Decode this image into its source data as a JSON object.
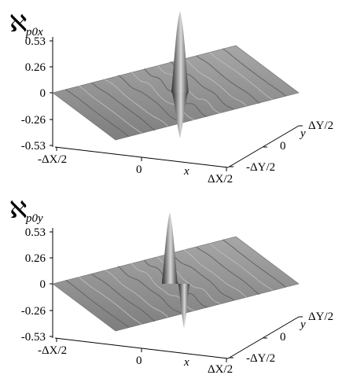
{
  "figure": {
    "panels": [
      {
        "id": "top",
        "symbol": "ℵ",
        "subscript": "p0x",
        "z_ticks": [
          "0.53",
          "0.26",
          "0",
          "-0.26",
          "-0.53"
        ],
        "x_ticks": [
          "-ΔX/2",
          "0",
          "ΔX/2"
        ],
        "x_label": "x",
        "y_ticks": [
          "ΔY/2",
          "0",
          "-ΔY/2"
        ],
        "y_label": "y",
        "colors": {
          "surface": "#8a8a8a",
          "dark": "#3a3a3a",
          "light": "#cfcfcf"
        }
      },
      {
        "id": "bottom",
        "symbol": "ℵ",
        "subscript": "p0y",
        "z_ticks": [
          "0.53",
          "0.26",
          "0",
          "-0.26",
          "-0.53"
        ],
        "x_ticks": [
          "-ΔX/2",
          "0",
          "ΔX/2"
        ],
        "x_label": "x",
        "y_ticks": [
          "ΔY/2",
          "0",
          "-ΔY/2"
        ],
        "y_label": "y",
        "colors": {
          "surface": "#8a8a8a",
          "dark": "#3a3a3a",
          "light": "#cfcfcf"
        }
      }
    ]
  }
}
